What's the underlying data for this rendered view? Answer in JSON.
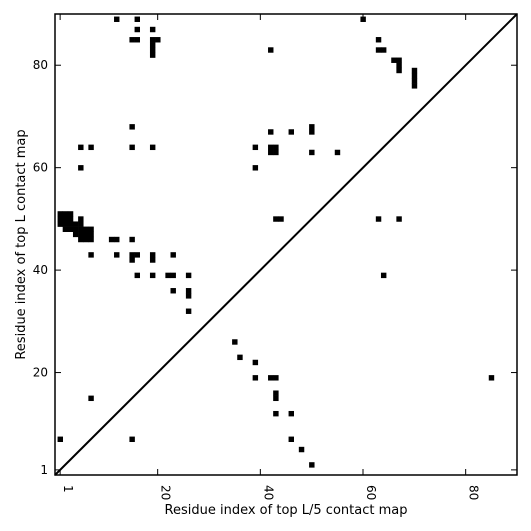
{
  "chart_data": {
    "type": "heatmap",
    "title": "",
    "xlabel": "Residue index of top L/5 contact map",
    "ylabel": "Residue index of top L contact map",
    "xlim": [
      0,
      90
    ],
    "ylim": [
      0,
      90
    ],
    "xticks": [
      {
        "value": 1,
        "label": "1"
      },
      {
        "value": 20,
        "label": "20"
      },
      {
        "value": 40,
        "label": "40"
      },
      {
        "value": 60,
        "label": "60"
      },
      {
        "value": 80,
        "label": "80"
      }
    ],
    "yticks": [
      {
        "value": 1,
        "label": "1"
      },
      {
        "value": 20,
        "label": "20"
      },
      {
        "value": 40,
        "label": "40"
      },
      {
        "value": 60,
        "label": "60"
      },
      {
        "value": 80,
        "label": "80"
      }
    ],
    "diagonal": true,
    "cell_color": "#000000",
    "upper_triangle_contacts": [
      [
        12,
        89
      ],
      [
        16,
        89
      ],
      [
        16,
        87
      ],
      [
        19,
        87
      ],
      [
        15,
        85
      ],
      [
        16,
        85
      ],
      [
        19,
        85
      ],
      [
        20,
        85
      ],
      [
        19,
        84
      ],
      [
        19,
        83
      ],
      [
        19,
        82
      ],
      [
        42,
        83
      ],
      [
        60,
        89
      ],
      [
        63,
        85
      ],
      [
        63,
        83
      ],
      [
        64,
        83
      ],
      [
        66,
        81
      ],
      [
        67,
        81
      ],
      [
        67,
        80
      ],
      [
        67,
        79
      ],
      [
        70,
        79
      ],
      [
        70,
        78
      ],
      [
        70,
        77
      ],
      [
        70,
        76
      ],
      [
        15,
        68
      ],
      [
        42,
        67
      ],
      [
        46,
        67
      ],
      [
        50,
        68
      ],
      [
        50,
        67
      ],
      [
        5,
        64
      ],
      [
        7,
        64
      ],
      [
        15,
        64
      ],
      [
        19,
        64
      ],
      [
        39,
        64
      ],
      [
        42,
        64
      ],
      [
        43,
        64
      ],
      [
        42,
        63
      ],
      [
        43,
        63
      ],
      [
        50,
        63
      ],
      [
        55,
        63
      ],
      [
        5,
        60
      ],
      [
        39,
        60
      ],
      [
        63,
        50
      ],
      [
        67,
        50
      ],
      [
        64,
        39
      ],
      [
        43,
        50
      ],
      [
        44,
        50
      ]
    ],
    "lower_triangle_contacts": [
      [
        1,
        51
      ],
      [
        2,
        51
      ],
      [
        3,
        51
      ],
      [
        1,
        50
      ],
      [
        2,
        50
      ],
      [
        3,
        50
      ],
      [
        1,
        49
      ],
      [
        2,
        49
      ],
      [
        3,
        49
      ],
      [
        4,
        49
      ],
      [
        5,
        50
      ],
      [
        5,
        49
      ],
      [
        2,
        48
      ],
      [
        3,
        48
      ],
      [
        4,
        48
      ],
      [
        5,
        48
      ],
      [
        6,
        48
      ],
      [
        7,
        48
      ],
      [
        4,
        47
      ],
      [
        5,
        47
      ],
      [
        6,
        47
      ],
      [
        7,
        47
      ],
      [
        5,
        46
      ],
      [
        6,
        46
      ],
      [
        7,
        46
      ],
      [
        11,
        46
      ],
      [
        12,
        46
      ],
      [
        15,
        46
      ],
      [
        7,
        43
      ],
      [
        12,
        43
      ],
      [
        15,
        43
      ],
      [
        16,
        43
      ],
      [
        19,
        43
      ],
      [
        23,
        43
      ],
      [
        15,
        42
      ],
      [
        19,
        42
      ],
      [
        16,
        39
      ],
      [
        19,
        39
      ],
      [
        22,
        39
      ],
      [
        23,
        39
      ],
      [
        26,
        39
      ],
      [
        23,
        36
      ],
      [
        26,
        36
      ],
      [
        26,
        35
      ],
      [
        26,
        32
      ],
      [
        35,
        26
      ],
      [
        36,
        23
      ],
      [
        39,
        22
      ],
      [
        39,
        19
      ],
      [
        42,
        19
      ],
      [
        43,
        19
      ],
      [
        43,
        16
      ],
      [
        43,
        15
      ],
      [
        43,
        12
      ],
      [
        46,
        12
      ],
      [
        7,
        15
      ],
      [
        85,
        19
      ],
      [
        1,
        7
      ],
      [
        15,
        7
      ],
      [
        46,
        7
      ],
      [
        48,
        5
      ],
      [
        50,
        2
      ]
    ]
  }
}
